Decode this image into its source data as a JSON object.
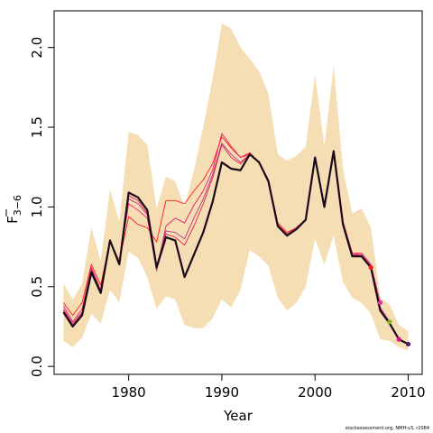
{
  "chart_data": {
    "type": "line",
    "title": "",
    "xlabel": "Year",
    "ylabel_main": "F",
    "ylabel_sub": "3−6",
    "credit": "stockassessment.org, NMH-v3, r2084",
    "xlim": [
      1972,
      2011.5
    ],
    "ylim": [
      -0.05,
      2.23
    ],
    "x_ticks": [
      1980,
      1990,
      2000,
      2010
    ],
    "y_ticks": [
      0.0,
      0.5,
      1.0,
      1.5,
      2.0
    ],
    "y_tick_labels": [
      "0.0",
      "0.5",
      "1.0",
      "1.5",
      "2.0"
    ],
    "band_color": "#f5deb3",
    "confidence_band": {
      "x": [
        1973,
        1974,
        1975,
        1976,
        1977,
        1978,
        1979,
        1980,
        1981,
        1982,
        1983,
        1984,
        1985,
        1986,
        1987,
        1988,
        1989,
        1990,
        1991,
        1992,
        1993,
        1994,
        1995,
        1996,
        1997,
        1998,
        1999,
        2000,
        2001,
        2002,
        2003,
        2004,
        2005,
        2006,
        2007,
        2008,
        2009,
        2010
      ],
      "lower": [
        0.16,
        0.12,
        0.18,
        0.33,
        0.27,
        0.48,
        0.4,
        0.72,
        0.68,
        0.56,
        0.36,
        0.44,
        0.42,
        0.26,
        0.24,
        0.24,
        0.3,
        0.42,
        0.37,
        0.48,
        0.73,
        0.69,
        0.63,
        0.43,
        0.35,
        0.4,
        0.5,
        0.8,
        0.64,
        0.82,
        0.53,
        0.43,
        0.4,
        0.33,
        0.17,
        0.16,
        0.12,
        0.1
      ],
      "upper": [
        0.52,
        0.42,
        0.52,
        0.87,
        0.66,
        1.11,
        0.91,
        1.47,
        1.45,
        1.39,
        0.99,
        1.19,
        1.16,
        1.0,
        1.23,
        1.5,
        1.8,
        2.15,
        2.12,
        2.0,
        1.93,
        1.85,
        1.71,
        1.33,
        1.29,
        1.32,
        1.38,
        1.83,
        1.38,
        1.89,
        1.24,
        0.96,
        0.99,
        0.87,
        0.43,
        0.39,
        0.26,
        0.22
      ]
    },
    "series": [
      {
        "color": "#1a0a1a",
        "width": 2.2,
        "x": [
          1973,
          1974,
          1975,
          1976,
          1977,
          1978,
          1979,
          1980,
          1981,
          1982,
          1983,
          1984,
          1985,
          1986,
          1987,
          1988,
          1989,
          1990,
          1991,
          1992,
          1993,
          1994,
          1995,
          1996,
          1997,
          1998,
          1999,
          2000,
          2001,
          2002,
          2003,
          2004,
          2005,
          2006,
          2007,
          2008,
          2009,
          2010
        ],
        "y": [
          0.34,
          0.25,
          0.32,
          0.59,
          0.46,
          0.79,
          0.64,
          1.09,
          1.06,
          0.98,
          0.62,
          0.81,
          0.79,
          0.56,
          0.7,
          0.84,
          1.03,
          1.28,
          1.24,
          1.23,
          1.33,
          1.28,
          1.16,
          0.88,
          0.82,
          0.86,
          0.92,
          1.31,
          1.0,
          1.35,
          0.89,
          0.69,
          0.69,
          0.62,
          0.35,
          0.27,
          0.17,
          0.14
        ]
      },
      {
        "color": "#ff1a1a",
        "width": 0.9,
        "x": [
          1973,
          1974,
          1975,
          1976,
          1977,
          1978,
          1979,
          1980,
          1981,
          1982,
          1983,
          1984,
          1985,
          1986,
          1987,
          1988,
          1989,
          1990,
          1991,
          1992,
          1993,
          1994,
          1995,
          1996,
          1997,
          1998,
          1999,
          2000,
          2001,
          2002,
          2003,
          2004,
          2005,
          2006
        ],
        "y": [
          0.4,
          0.32,
          0.4,
          0.64,
          0.51,
          0.79,
          0.66,
          0.94,
          0.89,
          0.87,
          0.78,
          1.04,
          1.04,
          1.02,
          1.1,
          1.17,
          1.27,
          1.44,
          1.37,
          1.31,
          1.34,
          1.28,
          1.17,
          0.9,
          0.84,
          0.87,
          0.92,
          1.3,
          1.01,
          1.33,
          0.91,
          0.71,
          0.7,
          0.62
        ]
      },
      {
        "color": "#e61a66",
        "width": 0.9,
        "x": [
          1973,
          1974,
          1975,
          1976,
          1977,
          1978,
          1979,
          1980,
          1981,
          1982,
          1983,
          1984,
          1985,
          1986,
          1987,
          1988,
          1989,
          1990,
          1991,
          1992,
          1993,
          1994,
          1995,
          1996,
          1997,
          1998,
          1999,
          2000,
          2001,
          2002,
          2003,
          2004,
          2005,
          2006,
          2007
        ],
        "y": [
          0.38,
          0.28,
          0.36,
          0.62,
          0.48,
          0.79,
          0.65,
          1.02,
          0.98,
          0.93,
          0.6,
          0.88,
          0.93,
          0.9,
          1.01,
          1.1,
          1.23,
          1.46,
          1.38,
          1.31,
          1.33,
          1.28,
          1.17,
          0.89,
          0.83,
          0.87,
          0.92,
          1.31,
          1.01,
          1.33,
          0.9,
          0.71,
          0.71,
          0.64,
          0.4
        ]
      },
      {
        "color": "#b3338c",
        "width": 0.9,
        "x": [
          1973,
          1974,
          1975,
          1976,
          1977,
          1978,
          1979,
          1980,
          1981,
          1982,
          1983,
          1984,
          1985,
          1986,
          1987,
          1988,
          1989,
          1990,
          1991,
          1992,
          1993,
          1994,
          1995,
          1996,
          1997,
          1998,
          1999,
          2000,
          2001,
          2002,
          2003,
          2004,
          2005,
          2006,
          2007,
          2008
        ],
        "y": [
          0.36,
          0.27,
          0.34,
          0.61,
          0.47,
          0.79,
          0.65,
          1.05,
          1.02,
          0.95,
          0.63,
          0.85,
          0.84,
          0.8,
          0.93,
          1.05,
          1.2,
          1.4,
          1.33,
          1.28,
          1.33,
          1.28,
          1.17,
          0.89,
          0.82,
          0.86,
          0.92,
          1.31,
          1.0,
          1.34,
          0.9,
          0.7,
          0.7,
          0.63,
          0.37,
          0.28
        ]
      },
      {
        "color": "#e6194c",
        "width": 0.9,
        "x": [
          1973,
          1974,
          1975,
          1976,
          1977,
          1978,
          1979,
          1980,
          1981,
          1982,
          1983,
          1984,
          1985,
          1986,
          1987,
          1988,
          1989,
          1990,
          1991,
          1992,
          1993,
          1994,
          1995,
          1996,
          1997,
          1998,
          1999,
          2000,
          2001,
          2002,
          2003,
          2004,
          2005,
          2006,
          2007,
          2008,
          2009
        ],
        "y": [
          0.35,
          0.26,
          0.33,
          0.6,
          0.47,
          0.79,
          0.64,
          1.07,
          1.04,
          0.96,
          0.62,
          0.83,
          0.81,
          0.76,
          0.88,
          1.02,
          1.18,
          1.39,
          1.31,
          1.27,
          1.33,
          1.28,
          1.16,
          0.88,
          0.82,
          0.86,
          0.92,
          1.31,
          1.0,
          1.35,
          0.89,
          0.7,
          0.69,
          0.62,
          0.36,
          0.27,
          0.17
        ]
      }
    ],
    "endpoints": [
      {
        "x": 2006,
        "y": 0.62,
        "color": "#ff1a1a"
      },
      {
        "x": 2007,
        "y": 0.4,
        "color": "#e6339f"
      },
      {
        "x": 2008,
        "y": 0.28,
        "color": "#8cb31a"
      },
      {
        "x": 2009,
        "y": 0.17,
        "color": "#cc1a7f"
      },
      {
        "x": 2010,
        "y": 0.14,
        "color": "#4d1a66"
      }
    ]
  }
}
